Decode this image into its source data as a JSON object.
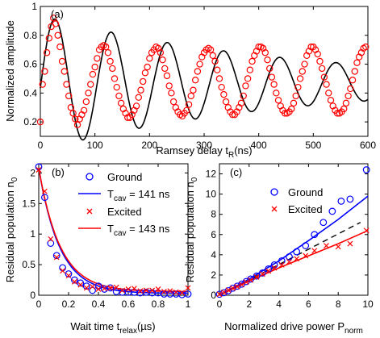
{
  "chart_data": [
    {
      "panel": "(a)",
      "type": "scatter",
      "xlabel_main": "Ramsey delay t",
      "xlabel_sub": "R",
      "xlabel_tail": "(ns)",
      "ylabel": "Normalized amplitude",
      "xlim": [
        0,
        600
      ],
      "ylim": [
        0.1,
        1.0
      ],
      "xticks": [
        "0",
        "100",
        "200",
        "300",
        "400",
        "500",
        "600"
      ],
      "yticks": [
        "0.2",
        "0.4",
        "0.6",
        "0.8",
        "1"
      ],
      "marker_color": "#ff0000",
      "fit_color": "#000000",
      "series": [
        {
          "kind": "data",
          "x": [
            0,
            4,
            8,
            12,
            16,
            20,
            24,
            28,
            32,
            36,
            40,
            44,
            48,
            52,
            56,
            60,
            64,
            68,
            72,
            76,
            80,
            84,
            88,
            92,
            96,
            100,
            104,
            108,
            112,
            116,
            120,
            124,
            128,
            132,
            136,
            140,
            144,
            148,
            152,
            156,
            160,
            164,
            168,
            172,
            176,
            180,
            184,
            188,
            192,
            196,
            200,
            204,
            208,
            212,
            216,
            220,
            224,
            228,
            232,
            236,
            240,
            244,
            248,
            252,
            256,
            260,
            264,
            268,
            272,
            276,
            280,
            284,
            288,
            292,
            296,
            300,
            304,
            308,
            312,
            316,
            320,
            324,
            328,
            332,
            336,
            340,
            344,
            348,
            352,
            356,
            360,
            364,
            368,
            372,
            376,
            380,
            384,
            388,
            392,
            396,
            400,
            404,
            408,
            412,
            416,
            420,
            424,
            428,
            432,
            436,
            440,
            444,
            448,
            452,
            456,
            460,
            464,
            468,
            472,
            476,
            480,
            484,
            488,
            492,
            496,
            500,
            504,
            508,
            512,
            516,
            520,
            524,
            528,
            532,
            536,
            540,
            544,
            548,
            552,
            556,
            560,
            564,
            568,
            572,
            576,
            580,
            584,
            588,
            592,
            596
          ],
          "y": [
            0.2,
            0.46,
            0.55,
            0.68,
            0.78,
            0.86,
            0.92,
            0.88,
            0.8,
            0.72,
            0.62,
            0.55,
            0.46,
            0.38,
            0.3,
            0.26,
            0.22,
            0.18,
            0.22,
            0.25,
            0.28,
            0.34,
            0.4,
            0.46,
            0.53,
            0.58,
            0.64,
            0.7,
            0.72,
            0.73,
            0.72,
            0.68,
            0.62,
            0.57,
            0.5,
            0.44,
            0.38,
            0.33,
            0.29,
            0.26,
            0.23,
            0.23,
            0.25,
            0.28,
            0.31,
            0.37,
            0.42,
            0.48,
            0.54,
            0.58,
            0.64,
            0.68,
            0.7,
            0.72,
            0.71,
            0.68,
            0.63,
            0.57,
            0.52,
            0.45,
            0.4,
            0.34,
            0.3,
            0.27,
            0.25,
            0.24,
            0.26,
            0.28,
            0.32,
            0.38,
            0.42,
            0.49,
            0.55,
            0.6,
            0.65,
            0.68,
            0.7,
            0.71,
            0.7,
            0.66,
            0.62,
            0.56,
            0.5,
            0.44,
            0.39,
            0.34,
            0.3,
            0.27,
            0.25,
            0.25,
            0.27,
            0.3,
            0.33,
            0.38,
            0.45,
            0.5,
            0.56,
            0.62,
            0.66,
            0.69,
            0.72,
            0.72,
            0.71,
            0.68,
            0.63,
            0.57,
            0.51,
            0.46,
            0.4,
            0.35,
            0.31,
            0.28,
            0.26,
            0.26,
            0.27,
            0.29,
            0.33,
            0.38,
            0.44,
            0.5,
            0.55,
            0.6,
            0.66,
            0.69,
            0.72,
            0.72,
            0.7,
            0.67,
            0.62,
            0.57,
            0.51,
            0.46,
            0.4,
            0.35,
            0.31,
            0.28,
            0.26,
            0.26,
            0.27,
            0.29,
            0.33,
            0.38,
            0.43,
            0.49,
            0.55,
            0.61,
            0.65,
            0.68,
            0.71,
            0.72
          ]
        },
        {
          "kind": "fit",
          "model": "0.47 + 0.47*exp(-x/450)*cos(2*pi*(x-27)/103)"
        }
      ]
    },
    {
      "panel": "(b)",
      "type": "scatter",
      "xlabel_main": "Wait time t",
      "xlabel_sub": "relax",
      "xlabel_tail": "(µs)",
      "ylabel_main": "Residual population n",
      "ylabel_sub": "0",
      "xlim": [
        0,
        1
      ],
      "ylim": [
        0,
        2.15
      ],
      "xticks": [
        "0",
        "0.2",
        "0.4",
        "0.6",
        "0.8",
        "1"
      ],
      "yticks": [
        "0",
        "0.5",
        "1",
        "1.5",
        "2"
      ],
      "legend_position": "top-right",
      "legend": {
        "ground": "Ground",
        "ground_fit_prefix": "T",
        "ground_fit_sub": "cav",
        "ground_fit_value": " = 141 ns",
        "excited": "Excited",
        "excited_fit_prefix": "T",
        "excited_fit_sub": "cav",
        "excited_fit_value": " = 143 ns"
      },
      "series": [
        {
          "name": "Ground",
          "color": "#0000ff",
          "marker": "circle",
          "x": [
            0,
            0.04,
            0.08,
            0.12,
            0.16,
            0.2,
            0.24,
            0.28,
            0.32,
            0.36,
            0.4,
            0.44,
            0.48,
            0.52,
            0.56,
            0.6,
            0.64,
            0.68,
            0.72,
            0.76,
            0.8,
            0.84,
            0.88,
            0.92,
            0.96,
            1.0
          ],
          "y": [
            2.1,
            1.6,
            0.85,
            0.65,
            0.45,
            0.35,
            0.25,
            0.2,
            0.15,
            0.08,
            0.15,
            0.1,
            0.12,
            0.06,
            0.05,
            0.05,
            0.05,
            0.04,
            0.05,
            0.04,
            0.04,
            0.02,
            0.02,
            0.02,
            0.01,
            0.02
          ]
        },
        {
          "name": "T_cav = 141 ns",
          "color": "#0000ff",
          "kind": "fit",
          "A": 2.05,
          "tau": 0.141,
          "c": 0.03
        },
        {
          "name": "Excited",
          "color": "#ff0000",
          "marker": "x",
          "x": [
            0,
            0.04,
            0.08,
            0.12,
            0.16,
            0.2,
            0.24,
            0.28,
            0.32,
            0.36,
            0.4,
            0.44,
            0.48,
            0.52,
            0.56,
            0.6,
            0.64,
            0.68,
            0.72,
            0.76,
            0.8,
            0.84,
            0.88,
            0.92,
            0.96,
            1.0
          ],
          "y": [
            2.05,
            1.7,
            0.92,
            0.62,
            0.4,
            0.32,
            0.22,
            0.17,
            0.12,
            0.14,
            0.1,
            0.11,
            0.12,
            0.13,
            0.08,
            0.1,
            0.11,
            0.07,
            0.08,
            0.08,
            0.1,
            0.06,
            0.07,
            0.05,
            0.04,
            0.12
          ]
        },
        {
          "name": "T_cav = 143 ns",
          "color": "#ff0000",
          "kind": "fit",
          "A": 2.02,
          "tau": 0.143,
          "c": 0.06
        }
      ]
    },
    {
      "panel": "(c)",
      "type": "scatter",
      "xlabel_main": "Normalized drive power P",
      "xlabel_sub": "norm",
      "ylabel_main": "Residual population n",
      "ylabel_sub": "0",
      "xlim": [
        0,
        10
      ],
      "ylim": [
        0,
        13
      ],
      "xticks": [
        "0",
        "2",
        "4",
        "6",
        "8",
        "10"
      ],
      "yticks": [
        "0",
        "2",
        "4",
        "6",
        "8",
        "10",
        "12"
      ],
      "legend_position": "top-left",
      "legend": {
        "ground": "Ground",
        "excited": "Excited"
      },
      "series": [
        {
          "name": "Ground",
          "color": "#0000ff",
          "marker": "circle",
          "x": [
            0,
            0.3,
            0.6,
            0.9,
            1.2,
            1.5,
            1.8,
            2.1,
            2.5,
            2.9,
            3.3,
            3.7,
            4.2,
            4.7,
            5.2,
            5.8,
            6.4,
            7.0,
            7.6,
            8.2,
            8.8,
            9.9
          ],
          "y": [
            0.1,
            0.25,
            0.45,
            0.7,
            0.9,
            1.1,
            1.35,
            1.6,
            1.9,
            2.2,
            2.6,
            3.0,
            3.4,
            3.8,
            4.3,
            4.9,
            6.0,
            7.2,
            8.3,
            9.3,
            9.5,
            12.4
          ]
        },
        {
          "name": "Ground fit",
          "color": "#0000ff",
          "kind": "curve",
          "x": [
            0,
            2,
            4,
            6,
            8,
            10
          ],
          "y": [
            0,
            1.6,
            3.4,
            5.4,
            7.5,
            9.8
          ]
        },
        {
          "name": "Excited",
          "color": "#ff0000",
          "marker": "x",
          "x": [
            0,
            0.3,
            0.6,
            0.9,
            1.2,
            1.5,
            1.8,
            2.1,
            2.5,
            2.9,
            3.3,
            3.7,
            4.2,
            4.7,
            5.2,
            5.8,
            6.4,
            7.2,
            8.0,
            8.8,
            9.9
          ],
          "y": [
            0.1,
            0.3,
            0.5,
            0.7,
            0.85,
            1.05,
            1.3,
            1.5,
            1.8,
            2.1,
            2.4,
            2.7,
            3.0,
            3.3,
            3.6,
            3.9,
            4.4,
            4.9,
            4.8,
            5.1,
            6.4
          ]
        },
        {
          "name": "Excited fit",
          "color": "#ff0000",
          "kind": "curve",
          "x": [
            0,
            2,
            4,
            6,
            8,
            10
          ],
          "y": [
            0,
            1.4,
            2.7,
            3.9,
            5.1,
            6.4
          ]
        },
        {
          "name": "Linear",
          "color": "#000000",
          "kind": "dashed",
          "x": [
            0,
            9.5
          ],
          "y": [
            0,
            7.2
          ]
        }
      ]
    }
  ]
}
